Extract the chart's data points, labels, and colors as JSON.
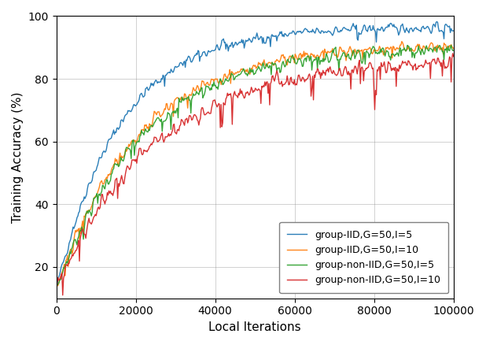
{
  "title": "",
  "xlabel": "Local Iterations",
  "ylabel": "Training Accuracy (%)",
  "xlim": [
    0,
    100000
  ],
  "ylim": [
    10,
    100
  ],
  "yticks": [
    20,
    40,
    60,
    80,
    100
  ],
  "xticks": [
    0,
    20000,
    40000,
    60000,
    80000,
    100000
  ],
  "legend_labels": [
    "group-IID,G=50,I=5",
    "group-IID,G=50,I=10",
    "group-non-IID,G=50,I=5",
    "group-non-IID,G=50,I=10"
  ],
  "colors": [
    "#1f77b4",
    "#ff7f0e",
    "#2ca02c",
    "#d62728"
  ],
  "linewidth": 1.0,
  "grid": true,
  "legend_loc": "lower right",
  "background_color": "#ffffff"
}
